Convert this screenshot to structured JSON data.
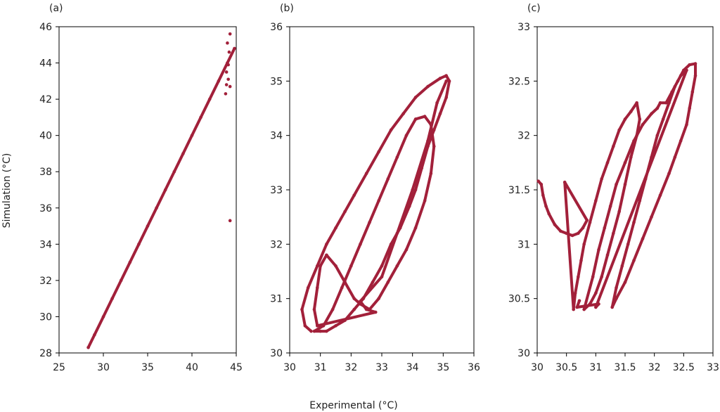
{
  "figure": {
    "xlabel": "Experimental (°C)",
    "ylabel": "Simulation (°C)",
    "point_color": "#A2203A"
  },
  "chart_data": [
    {
      "type": "scatter",
      "panel_label": "(a)",
      "xlim": [
        25,
        45
      ],
      "ylim": [
        28,
        46
      ],
      "x_ticks": [
        25,
        30,
        35,
        40,
        45
      ],
      "y_ticks": [
        28,
        30,
        32,
        34,
        36,
        38,
        40,
        42,
        44,
        46
      ],
      "grid": false,
      "legend": "none",
      "series": [
        {
          "points": [
            [
              28.3,
              28.3
            ],
            [
              29,
              29
            ],
            [
              30,
              30
            ],
            [
              31,
              31
            ],
            [
              32,
              32
            ],
            [
              33,
              33
            ],
            [
              34,
              34
            ],
            [
              35,
              35
            ],
            [
              36,
              36
            ],
            [
              37,
              37
            ],
            [
              38,
              38
            ],
            [
              39,
              39
            ],
            [
              40,
              40
            ],
            [
              41,
              41
            ],
            [
              42,
              42
            ],
            [
              43,
              43
            ],
            [
              44,
              44
            ],
            [
              44.8,
              44.8
            ],
            [
              44.3,
              45.6
            ],
            [
              44.0,
              45.1
            ],
            [
              44.2,
              44.6
            ],
            [
              44.1,
              43.9
            ],
            [
              43.9,
              43.5
            ],
            [
              44.1,
              43.1
            ],
            [
              43.9,
              42.8
            ],
            [
              44.3,
              42.7
            ],
            [
              43.8,
              42.3
            ],
            [
              44.3,
              35.3
            ]
          ]
        }
      ]
    },
    {
      "type": "scatter",
      "panel_label": "(b)",
      "xlim": [
        30,
        36
      ],
      "ylim": [
        30,
        36
      ],
      "x_ticks": [
        30,
        31,
        32,
        33,
        34,
        35,
        36
      ],
      "y_ticks": [
        30,
        31,
        32,
        33,
        34,
        35,
        36
      ],
      "grid": false,
      "legend": "none",
      "series": [
        {
          "points": [
            [
              30.7,
              30.4
            ],
            [
              30.5,
              30.5
            ],
            [
              30.4,
              30.8
            ],
            [
              30.6,
              31.2
            ],
            [
              30.9,
              31.6
            ],
            [
              31.2,
              32.0
            ],
            [
              31.5,
              32.3
            ],
            [
              31.8,
              32.6
            ],
            [
              32.1,
              32.9
            ],
            [
              32.5,
              33.3
            ],
            [
              32.9,
              33.7
            ],
            [
              33.3,
              34.1
            ],
            [
              33.7,
              34.4
            ],
            [
              34.1,
              34.7
            ],
            [
              34.5,
              34.9
            ],
            [
              34.9,
              35.05
            ],
            [
              35.1,
              35.1
            ],
            [
              35.2,
              35.0
            ],
            [
              35.1,
              34.7
            ],
            [
              34.9,
              34.4
            ],
            [
              34.7,
              34.1
            ],
            [
              34.5,
              33.8
            ],
            [
              34.3,
              33.4
            ],
            [
              34.1,
              33.0
            ],
            [
              33.9,
              32.7
            ],
            [
              33.6,
              32.3
            ],
            [
              33.3,
              32.0
            ],
            [
              33.0,
              31.6
            ],
            [
              32.7,
              31.3
            ],
            [
              32.4,
              31.0
            ],
            [
              32.1,
              30.8
            ],
            [
              31.8,
              30.6
            ],
            [
              31.5,
              30.5
            ],
            [
              31.2,
              30.4
            ],
            [
              31.0,
              30.4
            ],
            [
              30.8,
              30.4
            ],
            [
              31.1,
              30.5
            ],
            [
              31.4,
              30.8
            ],
            [
              31.7,
              31.2
            ],
            [
              32.0,
              31.6
            ],
            [
              32.3,
              32.0
            ],
            [
              32.6,
              32.4
            ],
            [
              32.9,
              32.8
            ],
            [
              33.2,
              33.2
            ],
            [
              33.5,
              33.6
            ],
            [
              33.8,
              34.0
            ],
            [
              34.1,
              34.3
            ],
            [
              34.4,
              34.35
            ],
            [
              34.6,
              34.2
            ],
            [
              34.7,
              33.8
            ],
            [
              34.6,
              33.3
            ],
            [
              34.4,
              32.8
            ],
            [
              34.1,
              32.3
            ],
            [
              33.8,
              31.9
            ],
            [
              33.5,
              31.6
            ],
            [
              33.2,
              31.3
            ],
            [
              32.9,
              31.0
            ],
            [
              32.6,
              30.8
            ],
            [
              32.3,
              30.9
            ],
            [
              32.1,
              31.0
            ],
            [
              31.8,
              31.3
            ],
            [
              31.5,
              31.6
            ],
            [
              31.2,
              31.8
            ],
            [
              31.0,
              31.6
            ],
            [
              30.9,
              31.2
            ],
            [
              30.8,
              30.8
            ],
            [
              30.9,
              30.5
            ],
            [
              32.8,
              30.75
            ],
            [
              32.5,
              30.8
            ],
            [
              32.3,
              30.95
            ],
            [
              33.0,
              31.4
            ],
            [
              33.5,
              32.2
            ],
            [
              34.0,
              33.0
            ],
            [
              34.5,
              33.9
            ],
            [
              34.8,
              34.6
            ],
            [
              35.1,
              35.0
            ]
          ]
        }
      ]
    },
    {
      "type": "scatter",
      "panel_label": "(c)",
      "xlim": [
        30,
        33
      ],
      "ylim": [
        30,
        33
      ],
      "x_ticks": [
        30,
        30.5,
        31,
        31.5,
        32,
        32.5,
        33
      ],
      "y_ticks": [
        30,
        30.5,
        31,
        31.5,
        32,
        32.5,
        33
      ],
      "grid": false,
      "legend": "none",
      "series": [
        {
          "points": [
            [
              30.02,
              31.58
            ],
            [
              30.07,
              31.55
            ],
            [
              30.1,
              31.45
            ],
            [
              30.15,
              31.35
            ],
            [
              30.2,
              31.28
            ],
            [
              30.3,
              31.18
            ],
            [
              30.4,
              31.12
            ],
            [
              30.5,
              31.1
            ],
            [
              30.6,
              31.08
            ],
            [
              30.7,
              31.1
            ],
            [
              30.78,
              31.15
            ],
            [
              30.85,
              31.22
            ],
            [
              30.47,
              31.57
            ],
            [
              30.62,
              30.4
            ],
            [
              30.65,
              30.55
            ],
            [
              30.7,
              30.7
            ],
            [
              30.75,
              30.85
            ],
            [
              30.8,
              31.0
            ],
            [
              30.9,
              31.2
            ],
            [
              31.0,
              31.4
            ],
            [
              31.1,
              31.6
            ],
            [
              31.2,
              31.75
            ],
            [
              31.3,
              31.9
            ],
            [
              31.4,
              32.05
            ],
            [
              31.5,
              32.15
            ],
            [
              31.6,
              32.22
            ],
            [
              31.7,
              32.3
            ],
            [
              31.75,
              32.15
            ],
            [
              31.7,
              32.0
            ],
            [
              31.6,
              31.8
            ],
            [
              31.5,
              31.55
            ],
            [
              31.4,
              31.3
            ],
            [
              31.3,
              31.1
            ],
            [
              31.2,
              30.9
            ],
            [
              31.1,
              30.7
            ],
            [
              31.0,
              30.55
            ],
            [
              30.9,
              30.45
            ],
            [
              30.8,
              30.4
            ],
            [
              30.95,
              30.7
            ],
            [
              31.05,
              30.95
            ],
            [
              31.15,
              31.15
            ],
            [
              31.25,
              31.35
            ],
            [
              31.35,
              31.55
            ],
            [
              31.5,
              31.75
            ],
            [
              31.65,
              31.95
            ],
            [
              31.8,
              32.1
            ],
            [
              31.95,
              32.2
            ],
            [
              32.05,
              32.25
            ],
            [
              32.1,
              32.3
            ],
            [
              32.2,
              32.3
            ],
            [
              32.3,
              32.4
            ],
            [
              32.4,
              32.5
            ],
            [
              32.5,
              32.6
            ],
            [
              32.6,
              32.65
            ],
            [
              32.7,
              32.66
            ],
            [
              32.7,
              32.55
            ],
            [
              32.65,
              32.4
            ],
            [
              32.6,
              32.25
            ],
            [
              32.55,
              32.1
            ],
            [
              32.45,
              31.95
            ],
            [
              32.35,
              31.8
            ],
            [
              32.25,
              31.65
            ],
            [
              32.1,
              31.45
            ],
            [
              31.95,
              31.25
            ],
            [
              31.8,
              31.05
            ],
            [
              31.65,
              30.85
            ],
            [
              31.5,
              30.65
            ],
            [
              31.35,
              30.5
            ],
            [
              31.28,
              30.42
            ],
            [
              31.35,
              30.6
            ],
            [
              31.45,
              30.8
            ],
            [
              31.55,
              31.0
            ],
            [
              31.65,
              31.2
            ],
            [
              31.75,
              31.4
            ],
            [
              31.85,
              31.6
            ],
            [
              31.95,
              31.8
            ],
            [
              32.05,
              32.0
            ],
            [
              32.15,
              32.15
            ],
            [
              32.25,
              32.3
            ],
            [
              32.35,
              32.45
            ],
            [
              32.45,
              32.55
            ],
            [
              32.55,
              32.6
            ],
            [
              31.0,
              30.42
            ],
            [
              31.05,
              30.45
            ],
            [
              30.68,
              30.42
            ],
            [
              30.72,
              30.48
            ]
          ]
        }
      ]
    }
  ]
}
